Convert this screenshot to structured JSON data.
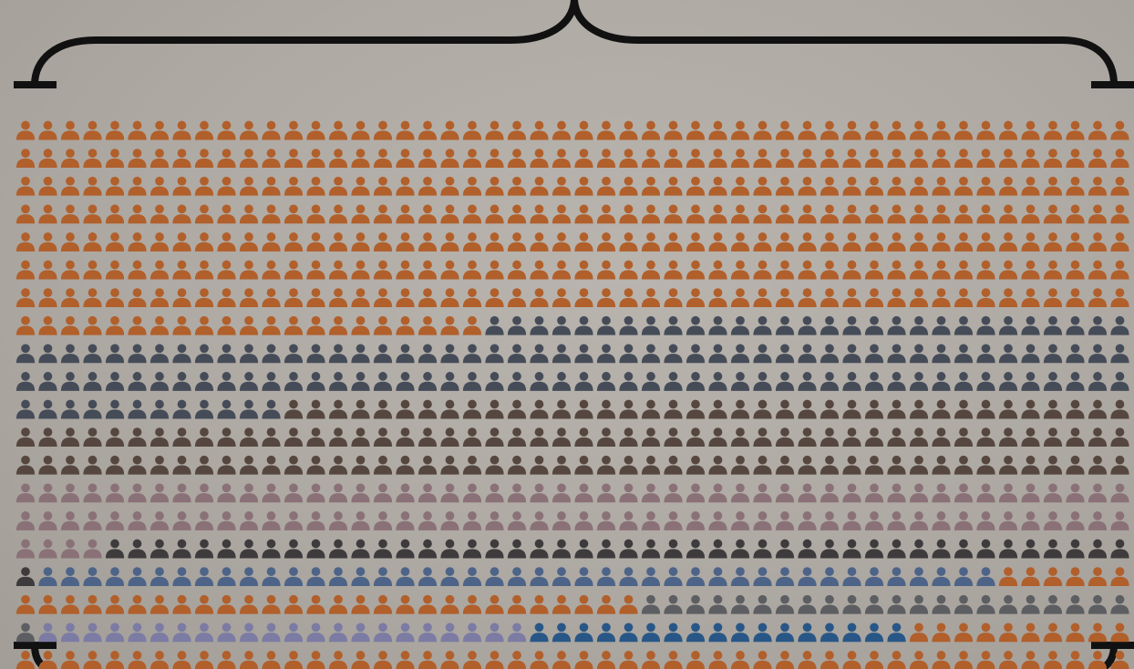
{
  "chart_data": {
    "type": "pictogram",
    "title": "",
    "unit_icon": "person-icon",
    "columns": 50,
    "total": 1001,
    "legend": "none",
    "segments": [
      {
        "color": "#b15f2b",
        "count": 371
      },
      {
        "color": "#454c58",
        "count": 141
      },
      {
        "color": "#55473f",
        "count": 138
      },
      {
        "color": "#8a7177",
        "count": 104
      },
      {
        "color": "#3e3b3c",
        "count": 47
      },
      {
        "color": "#4d6488",
        "count": 43
      },
      {
        "color": "#b15f2b",
        "count": 34
      },
      {
        "color": "#5d5e62",
        "count": 23
      },
      {
        "color": "#7b7ba4",
        "count": 22
      },
      {
        "color": "#285787",
        "count": 17
      },
      {
        "color": "#b15f2b",
        "count": 61
      }
    ]
  },
  "decorations": {
    "top_brace": "brace-top",
    "bottom_brace": "brace-bottom",
    "brace_color": "#111111"
  }
}
